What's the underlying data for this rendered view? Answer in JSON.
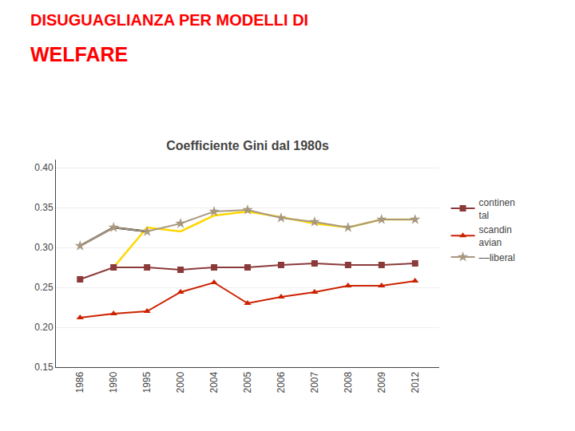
{
  "chart_data": {
    "type": "line",
    "title": "Coefficiente Gini dal 1980s",
    "annotations": [
      {
        "text": "DISUGUAGLIANZA PER MODELLI DI",
        "color": "#FF0000"
      },
      {
        "text": "WELFARE",
        "color": "#FF0000"
      }
    ],
    "categories": [
      "1986",
      "1990",
      "1995",
      "2000",
      "2004",
      "2005",
      "2006",
      "2007",
      "2008",
      "2009",
      "2012"
    ],
    "series": [
      {
        "name": "continen\ntal",
        "color": "#8B3A3A",
        "marker": "square",
        "line_style": "solid",
        "values": [
          0.26,
          0.275,
          0.275,
          0.272,
          0.275,
          0.275,
          0.278,
          0.28,
          0.278,
          0.278,
          0.28
        ]
      },
      {
        "name": "scandin\navian",
        "color": "#CC2200",
        "marker": "triangle-up",
        "line_style": "solid",
        "values": [
          0.212,
          0.217,
          0.22,
          0.244,
          0.256,
          0.23,
          0.238,
          0.244,
          0.252,
          0.252,
          0.258
        ]
      },
      {
        "name": "––liberal",
        "color": "#A89880",
        "marker": "star",
        "line_style": "solid",
        "values": [
          0.302,
          0.325,
          0.32,
          0.33,
          0.345,
          0.347,
          0.337,
          0.332,
          0.325,
          0.335,
          0.335
        ]
      },
      {
        "color": "#000000",
        "line_style": "solid",
        "values": [
          0.302,
          0.325,
          0.32,
          null,
          null,
          null,
          null,
          null,
          null,
          null,
          null
        ]
      },
      {
        "color": "#FFD700",
        "line_style": "solid",
        "values": [
          null,
          0.275,
          0.325,
          0.32,
          0.34,
          0.345,
          0.338,
          0.33,
          0.325,
          0.335,
          0.335
        ]
      }
    ],
    "ylim": [
      0.15,
      0.41
    ],
    "yticks": [
      0.15,
      {
        "value": 0.2,
        "label": "0.20"
      },
      0.25,
      {
        "value": 0.3,
        "label": "0.30"
      },
      0.35,
      {
        "value": 0.4,
        "label": "0.40"
      }
    ],
    "grid": true,
    "legend": "right"
  }
}
